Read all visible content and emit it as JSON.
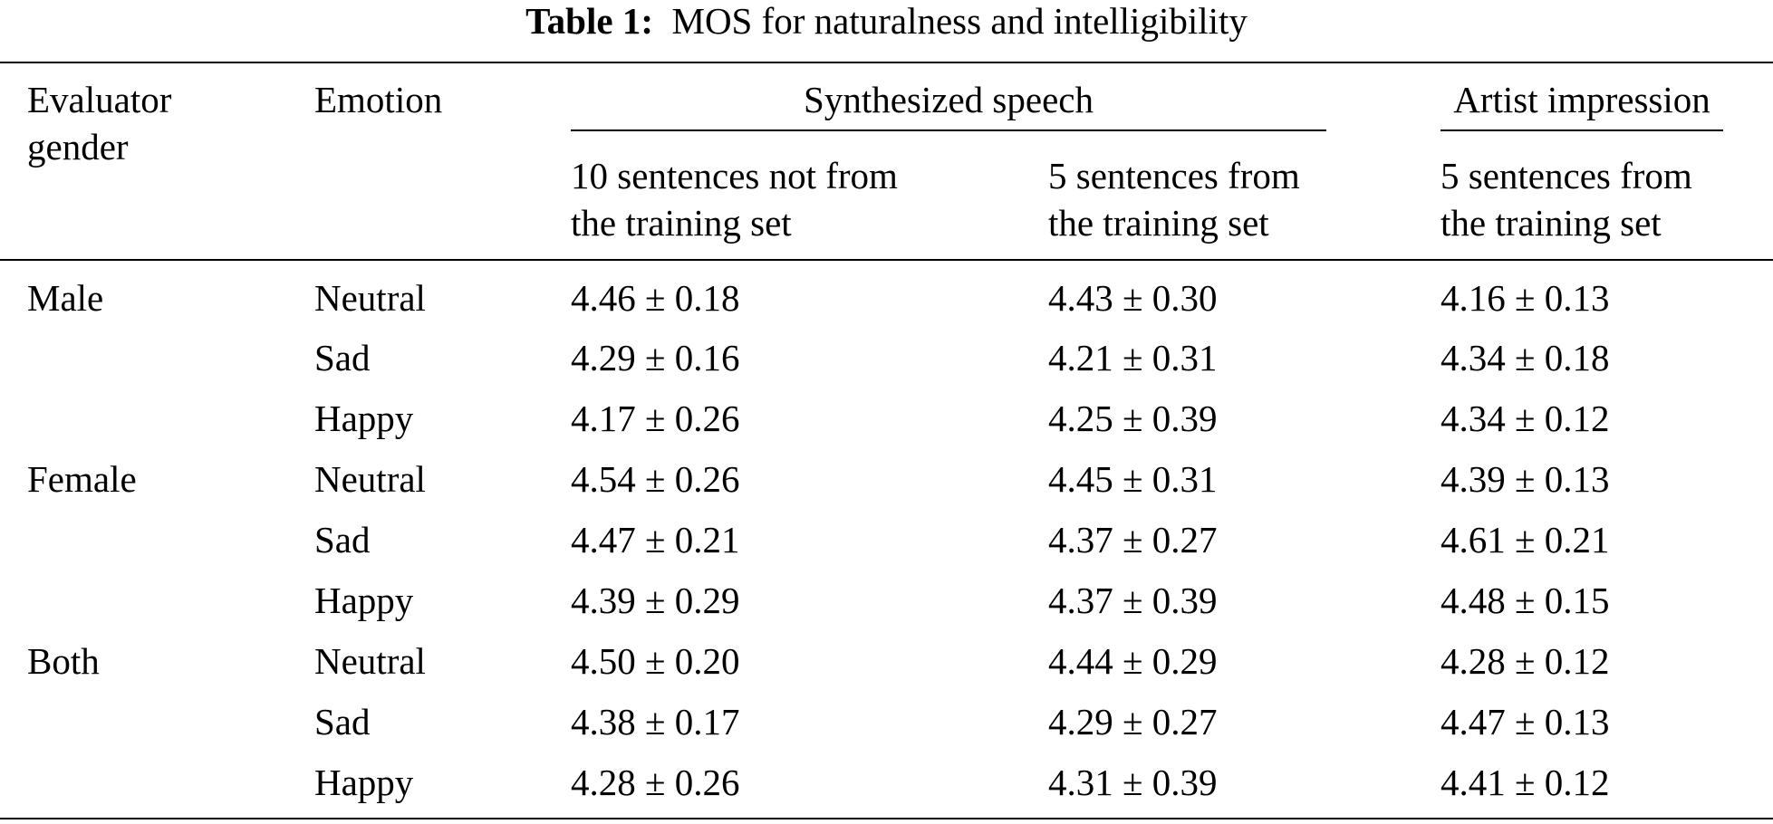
{
  "caption": {
    "label": "Table 1:",
    "text": "MOS for naturalness and intelligibility"
  },
  "headers": {
    "evaluator_line1": "Evaluator",
    "evaluator_line2": "gender",
    "emotion": "Emotion",
    "group_synth": "Synthesized speech",
    "group_artist": "Artist impression",
    "col1_line1": "10 sentences not from",
    "col1_line2": "the training set",
    "col2_line1": "5 sentences from",
    "col2_line2": "the training set",
    "col3_line1": "5 sentences from",
    "col3_line2": "the training set"
  },
  "rows": [
    {
      "gender": "Male",
      "emotion": "Neutral",
      "c1": "4.46 ± 0.18",
      "c2": "4.43 ± 0.30",
      "c3": "4.16 ± 0.13"
    },
    {
      "gender": "",
      "emotion": "Sad",
      "c1": "4.29 ± 0.16",
      "c2": "4.21 ± 0.31",
      "c3": "4.34 ± 0.18"
    },
    {
      "gender": "",
      "emotion": "Happy",
      "c1": "4.17 ± 0.26",
      "c2": "4.25 ± 0.39",
      "c3": "4.34 ± 0.12"
    },
    {
      "gender": "Female",
      "emotion": "Neutral",
      "c1": "4.54 ± 0.26",
      "c2": "4.45 ± 0.31",
      "c3": "4.39 ± 0.13"
    },
    {
      "gender": "",
      "emotion": "Sad",
      "c1": "4.47 ± 0.21",
      "c2": "4.37 ± 0.27",
      "c3": "4.61 ± 0.21"
    },
    {
      "gender": "",
      "emotion": "Happy",
      "c1": "4.39 ± 0.29",
      "c2": "4.37 ± 0.39",
      "c3": "4.48 ± 0.15"
    },
    {
      "gender": "Both",
      "emotion": "Neutral",
      "c1": "4.50 ± 0.20",
      "c2": "4.44 ± 0.29",
      "c3": "4.28 ± 0.12"
    },
    {
      "gender": "",
      "emotion": "Sad",
      "c1": "4.38 ± 0.17",
      "c2": "4.29 ± 0.27",
      "c3": "4.47 ± 0.13"
    },
    {
      "gender": "",
      "emotion": "Happy",
      "c1": "4.28 ± 0.26",
      "c2": "4.31 ± 0.39",
      "c3": "4.41 ± 0.12"
    }
  ]
}
